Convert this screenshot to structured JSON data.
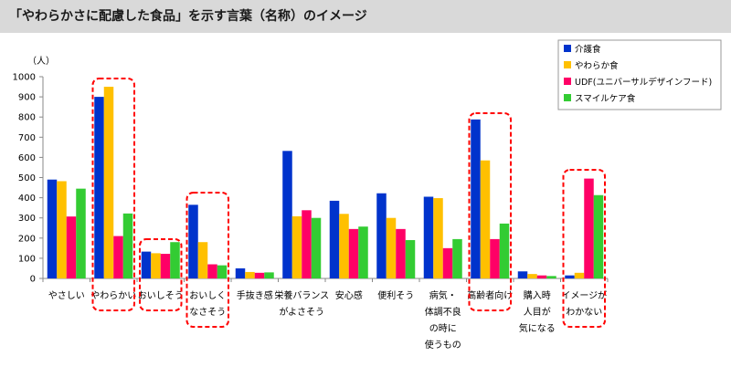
{
  "title": "「やわらかさに配慮した食品」を示す言葉（名称）のイメージ",
  "chart_data": {
    "type": "bar",
    "ylabel": "（人）",
    "ylim": [
      0,
      1000
    ],
    "yticks": [
      0,
      100,
      200,
      300,
      400,
      500,
      600,
      700,
      800,
      900,
      1000
    ],
    "grid": false,
    "legend_position": "top-right",
    "categories": [
      [
        "やさしい"
      ],
      [
        "やわらかい"
      ],
      [
        "おいしそう"
      ],
      [
        "おいしく",
        "なさそう"
      ],
      [
        "手抜き感"
      ],
      [
        "栄養バランス",
        "がよさそう"
      ],
      [
        "安心感"
      ],
      [
        "便利そう"
      ],
      [
        "病気・",
        "体調不良",
        "の時に",
        "使うもの"
      ],
      [
        "高齢者向け"
      ],
      [
        "購入時",
        "人目が",
        "気になる"
      ],
      [
        "イメージが",
        "わかない"
      ]
    ],
    "highlighted": [
      1,
      2,
      3,
      9,
      11
    ],
    "series": [
      {
        "name": "介護食",
        "color": "#0033cc",
        "values": [
          490,
          900,
          133,
          365,
          50,
          632,
          385,
          422,
          405,
          788,
          35,
          15
        ]
      },
      {
        "name": "やわらか食",
        "color": "#ffc000",
        "values": [
          482,
          950,
          125,
          180,
          32,
          308,
          320,
          300,
          398,
          585,
          22,
          28
        ]
      },
      {
        "name": "UDF(ユニバーサルデザインフード)",
        "color": "#ff0066",
        "values": [
          307,
          210,
          122,
          70,
          28,
          338,
          245,
          245,
          150,
          195,
          15,
          495
        ]
      },
      {
        "name": "スマイルケア食",
        "color": "#33cc33",
        "values": [
          445,
          322,
          180,
          65,
          30,
          300,
          257,
          190,
          195,
          272,
          12,
          413
        ]
      }
    ]
  }
}
